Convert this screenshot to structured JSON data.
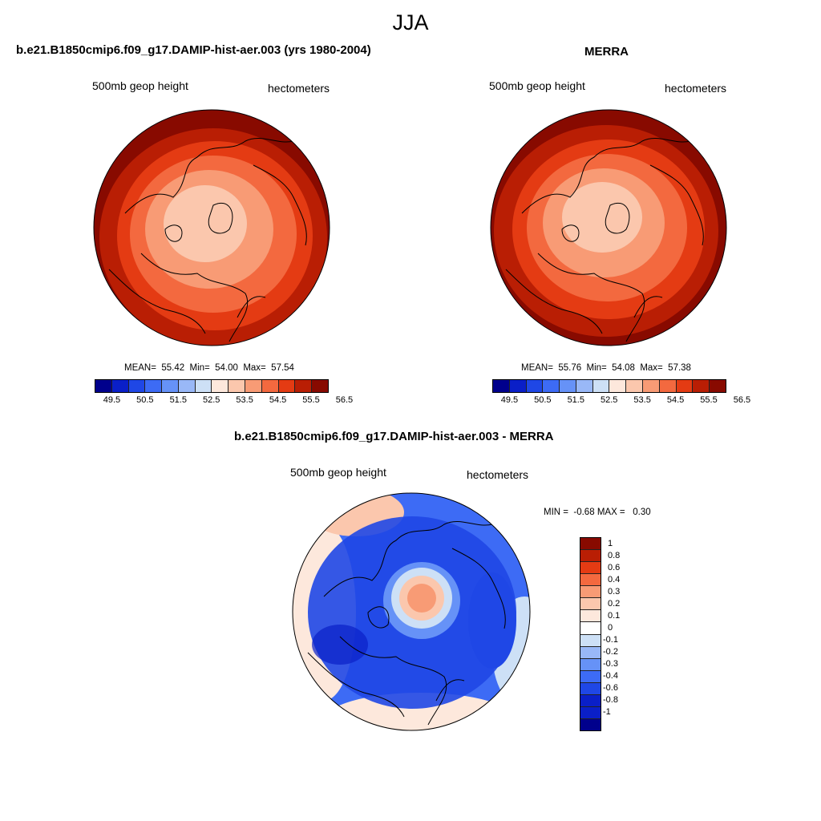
{
  "figure": {
    "season": "JJA"
  },
  "panels": [
    {
      "title": "b.e21.B1850cmip6.f09_g17.DAMIP-hist-aer.003 (yrs 1980-2004)",
      "left_label": "500mb geop height",
      "right_label": "hectometers",
      "stats": {
        "mean_label": "MEAN=",
        "mean": "55.42",
        "min_label": "Min=",
        "min": "54.00",
        "max_label": "Max=",
        "max": "57.54"
      },
      "colorbar": {
        "colors": [
          "#00008c",
          "#0a1fc8",
          "#1f47e6",
          "#3d6bf5",
          "#6692f7",
          "#99b8f7",
          "#cde0f6",
          "#fde8dc",
          "#fbc7ad",
          "#f89b75",
          "#f3693f",
          "#e43b13",
          "#b91e04",
          "#880a00"
        ],
        "tick_labels": [
          "49.5",
          "50.5",
          "51.5",
          "52.5",
          "53.5",
          "54.5",
          "55.5",
          "56.5"
        ]
      },
      "map_fill_levels": [
        "#880a00",
        "#b91e04",
        "#e43b13",
        "#f3693f",
        "#f89b75",
        "#fbc7ad"
      ]
    },
    {
      "title": "MERRA",
      "left_label": "500mb geop height",
      "right_label": "hectometers",
      "stats": {
        "mean_label": "MEAN=",
        "mean": "55.76",
        "min_label": "Min=",
        "min": "54.08",
        "max_label": "Max=",
        "max": "57.38"
      },
      "colorbar": {
        "colors": [
          "#00008c",
          "#0a1fc8",
          "#1f47e6",
          "#3d6bf5",
          "#6692f7",
          "#99b8f7",
          "#cde0f6",
          "#fde8dc",
          "#fbc7ad",
          "#f89b75",
          "#f3693f",
          "#e43b13",
          "#b91e04",
          "#880a00"
        ],
        "tick_labels": [
          "49.5",
          "50.5",
          "51.5",
          "52.5",
          "53.5",
          "54.5",
          "55.5",
          "56.5"
        ]
      },
      "map_fill_levels": [
        "#880a00",
        "#b91e04",
        "#e43b13",
        "#f3693f",
        "#f89b75",
        "#fbc7ad"
      ]
    },
    {
      "title": "b.e21.B1850cmip6.f09_g17.DAMIP-hist-aer.003 - MERRA",
      "left_label": "500mb geop height",
      "right_label": "hectometers",
      "stats": {
        "min_label": "MIN =",
        "min": "-0.68",
        "max_label": "MAX =",
        "max": "0.30"
      },
      "colorbar": {
        "colors": [
          "#880a00",
          "#b91e04",
          "#e43b13",
          "#f3693f",
          "#f89b75",
          "#fbc7ad",
          "#fde8dc",
          "#ffffff",
          "#cde0f6",
          "#99b8f7",
          "#6692f7",
          "#3d6bf5",
          "#1f47e6",
          "#0a1fc8",
          "#0a1fc8",
          "#00008c"
        ],
        "tick_labels": [
          "1",
          "0.8",
          "0.6",
          "0.4",
          "0.3",
          "0.2",
          "0.1",
          "0",
          "-0.1",
          "-0.2",
          "-0.3",
          "-0.4",
          "-0.6",
          "-0.8",
          "-1"
        ]
      }
    }
  ]
}
